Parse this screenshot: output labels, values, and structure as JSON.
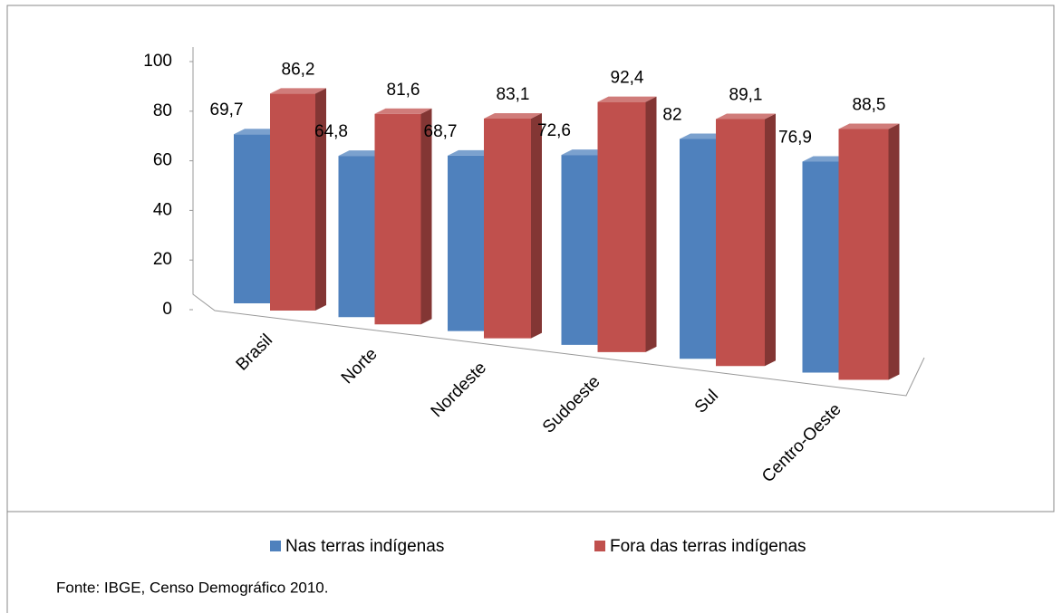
{
  "chart_data": {
    "type": "bar3d",
    "categories": [
      "Brasil",
      "Norte",
      "Nordeste",
      "Sudoeste",
      "Sul",
      "Centro-Oeste"
    ],
    "series": [
      {
        "name": "Nas terras indígenas",
        "color": "#4f81bd",
        "values": [
          69.7,
          64.8,
          68.7,
          72.6,
          82,
          76.9
        ],
        "value_labels": [
          "69,7",
          "64,8",
          "68,7",
          "72,6",
          "82",
          "76,9"
        ]
      },
      {
        "name": "Fora das terras indígenas",
        "color": "#c0504d",
        "values": [
          86.2,
          81.6,
          83.1,
          92.4,
          89.1,
          88.5
        ],
        "value_labels": [
          "86,2",
          "81,6",
          "83,1",
          "92,4",
          "89,1",
          "88,5"
        ]
      }
    ],
    "ylim": [
      0,
      100
    ],
    "yticks": [
      0,
      20,
      40,
      60,
      80,
      100
    ],
    "legend": "bottom",
    "source": "Fonte: IBGE, Censo Demográfico 2010."
  }
}
